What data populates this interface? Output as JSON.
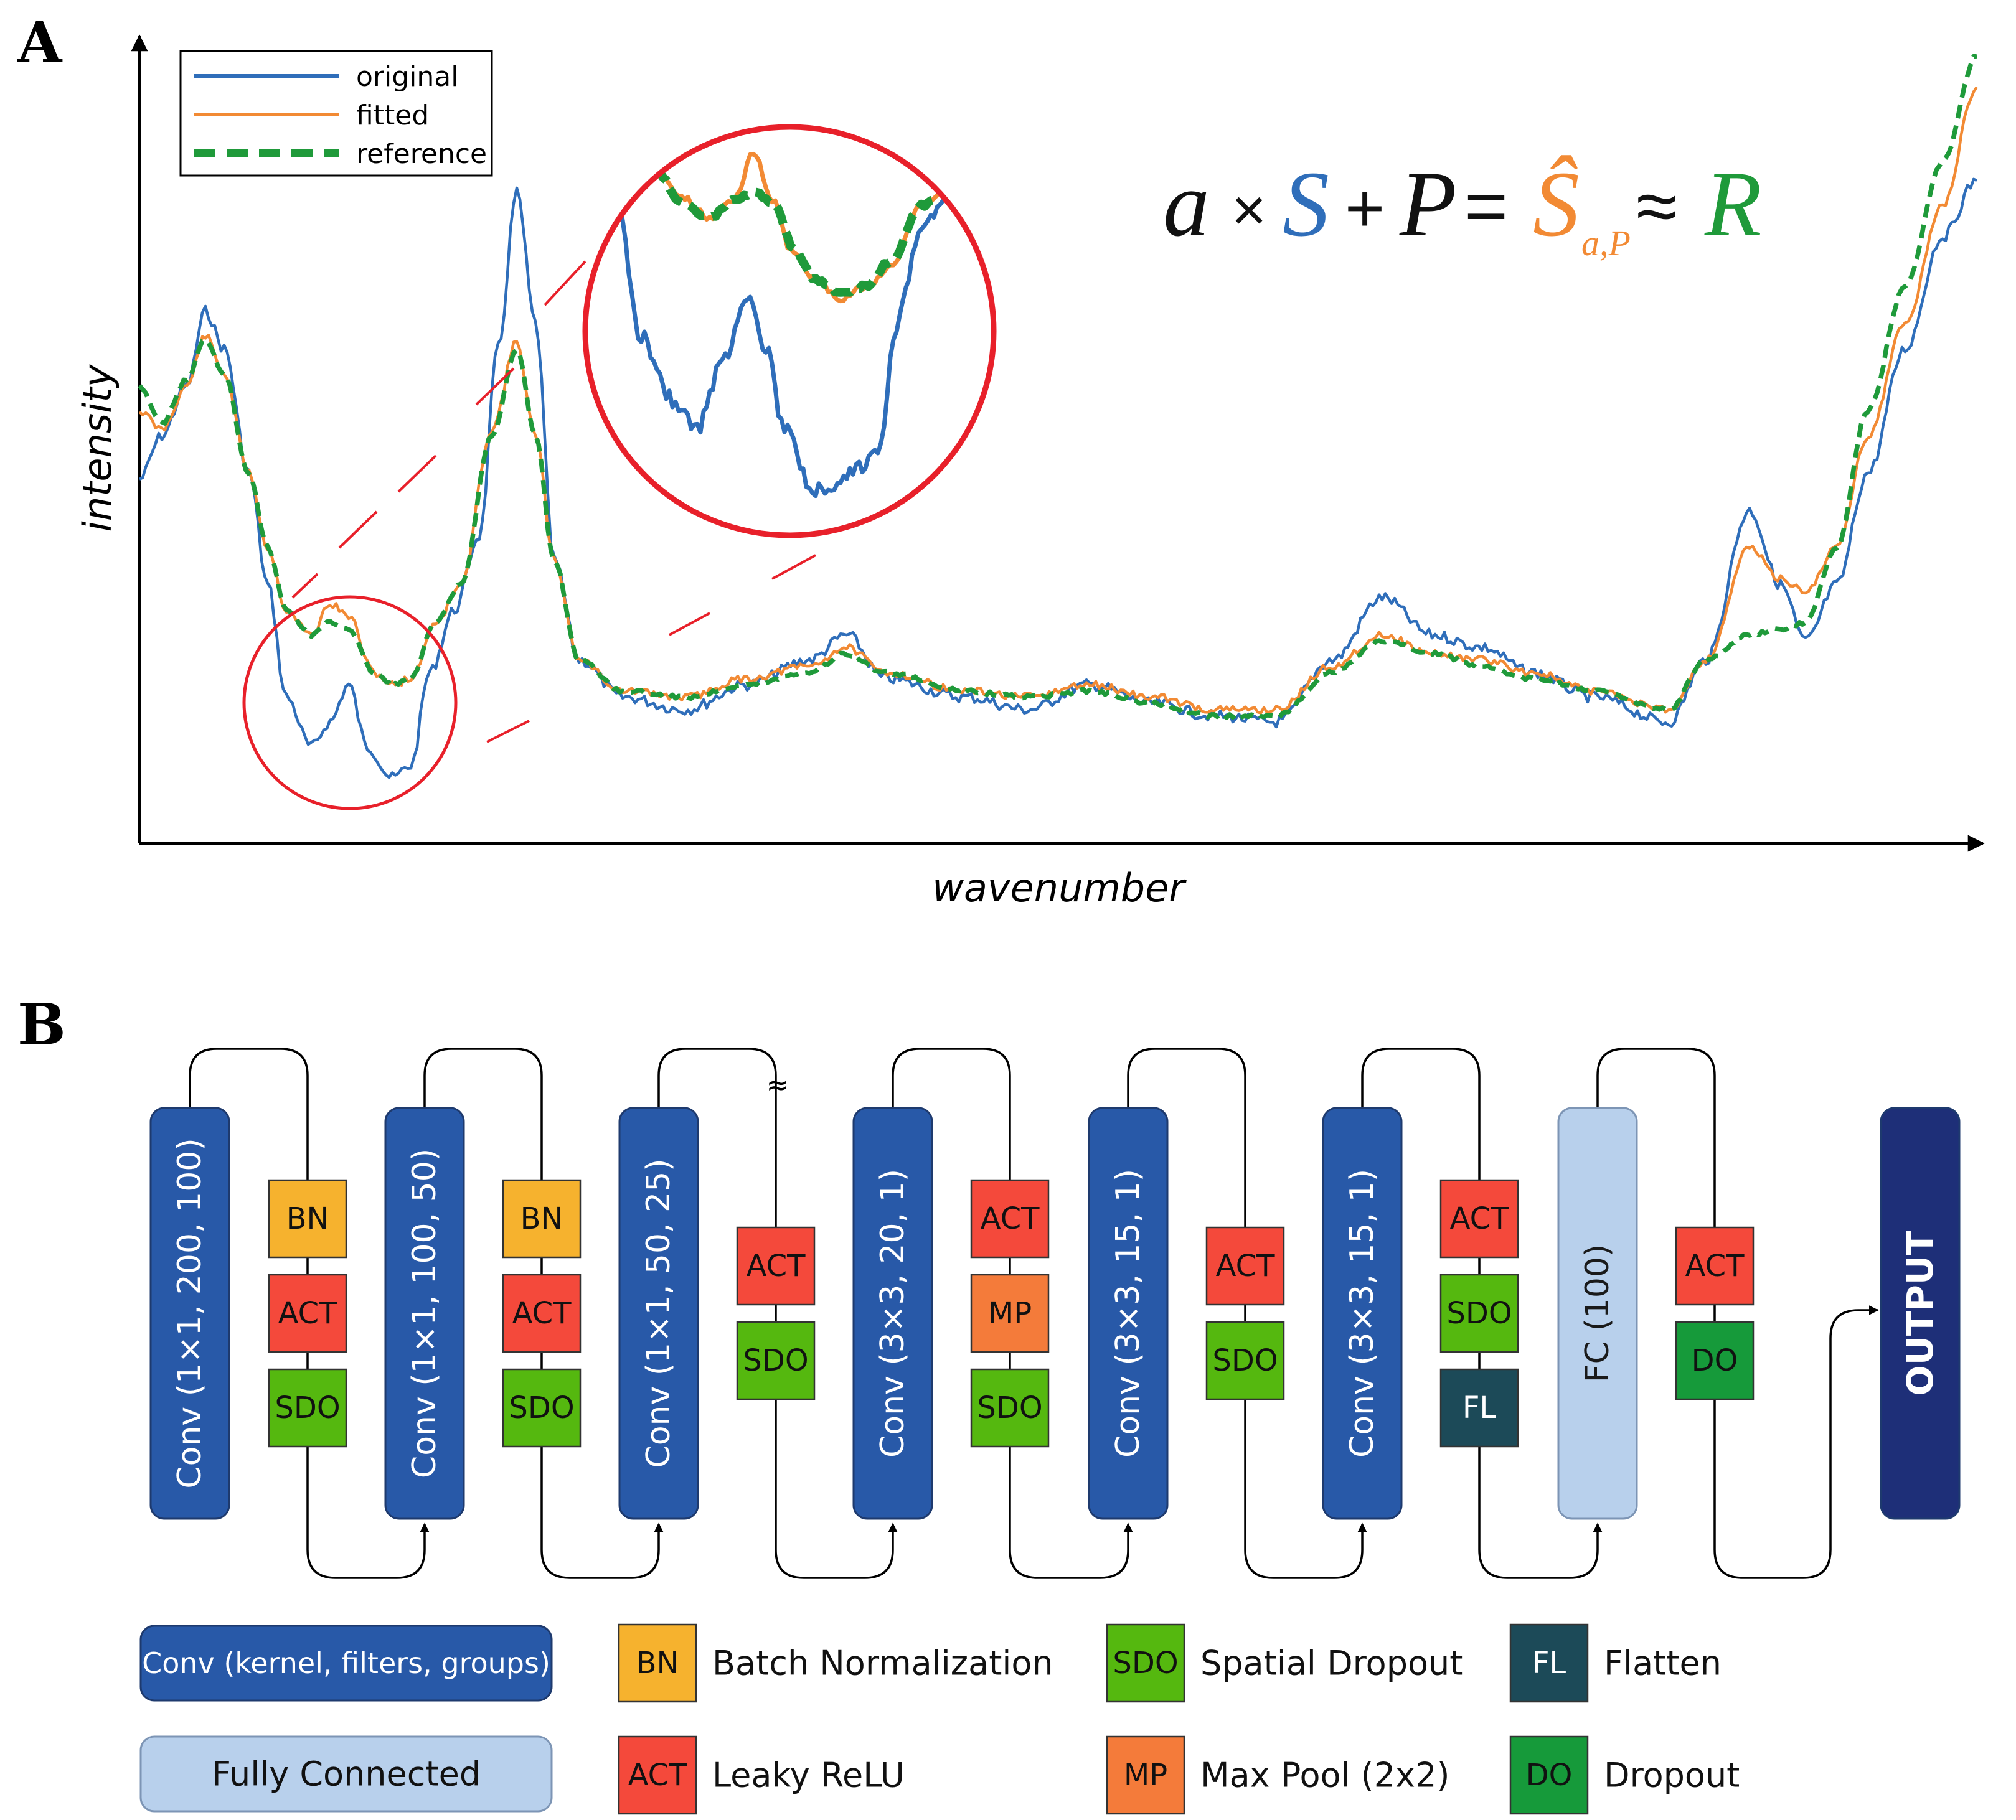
{
  "panel_a": {
    "letter": "A",
    "legend": [
      {
        "label": "original",
        "color": "#2f6eba",
        "style": "solid"
      },
      {
        "label": "fitted",
        "color": "#f28a34",
        "style": "solid"
      },
      {
        "label": "reference",
        "color": "#1f9a3a",
        "style": "dashed"
      }
    ],
    "equation": {
      "a": "a",
      "times": "×",
      "S": "S",
      "plus": "+",
      "P": "P",
      "equals": "=",
      "S_hat": "Ŝ",
      "S_hat_sub": "a,P",
      "approx": "≈",
      "R": "R"
    },
    "xlabel": "wavenumber",
    "ylabel": "intensity",
    "zoom_circle_color": "#e8202a"
  },
  "panel_b": {
    "letter": "B",
    "colors": {
      "conv": "#2859a8",
      "fc": "#b8d0ec",
      "output": "#1e2f78",
      "BN": "#f6b22e",
      "ACT": "#f4493b",
      "SDO": "#55b80f",
      "MP": "#f47b3a",
      "FL": "#1c4a58",
      "DO": "#169a3a"
    },
    "blocks": [
      {
        "kind": "conv",
        "label": "Conv (1×1, 200, 100)",
        "ops": [
          "BN",
          "ACT",
          "SDO"
        ]
      },
      {
        "kind": "conv",
        "label": "Conv (1×1, 100, 50)",
        "ops": [
          "BN",
          "ACT",
          "SDO"
        ]
      },
      {
        "kind": "conv",
        "label": "Conv (1×1, 50, 25)",
        "ops": [
          "ACT",
          "SDO"
        ]
      },
      {
        "kind": "conv",
        "label": "Conv (3×3, 20, 1)",
        "ops": [
          "ACT",
          "MP",
          "SDO"
        ]
      },
      {
        "kind": "conv",
        "label": "Conv (3×3, 15, 1)",
        "ops": [
          "ACT",
          "SDO"
        ]
      },
      {
        "kind": "conv",
        "label": "Conv (3×3, 15, 1)",
        "ops": [
          "ACT",
          "SDO",
          "FL"
        ]
      },
      {
        "kind": "fc",
        "label": "FC (100)",
        "ops": [
          "ACT",
          "DO"
        ]
      },
      {
        "kind": "output",
        "label": "OUTPUT",
        "ops": []
      }
    ],
    "reshape_mark": "≈",
    "legend": {
      "conv": "Conv (kernel, filters, groups)",
      "fc": "Fully Connected",
      "items": [
        {
          "code": "BN",
          "text": "Batch Normalization"
        },
        {
          "code": "ACT",
          "text": "Leaky ReLU"
        },
        {
          "code": "SDO",
          "text": "Spatial Dropout"
        },
        {
          "code": "MP",
          "text": "Max Pool (2x2)"
        },
        {
          "code": "FL",
          "text": "Flatten"
        },
        {
          "code": "DO",
          "text": "Dropout"
        }
      ]
    }
  }
}
